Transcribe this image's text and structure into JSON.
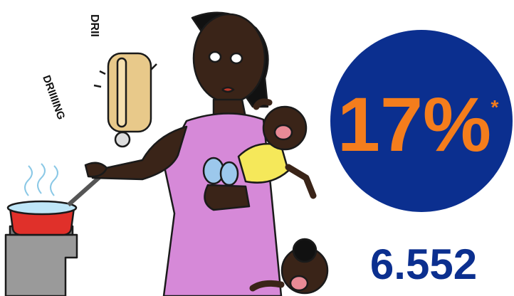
{
  "stat": {
    "percent": "17%",
    "footnote_mark": "*",
    "count": "6.552"
  },
  "illustration": {
    "sound_effects": [
      "DRIIIIING",
      "DRII"
    ]
  }
}
